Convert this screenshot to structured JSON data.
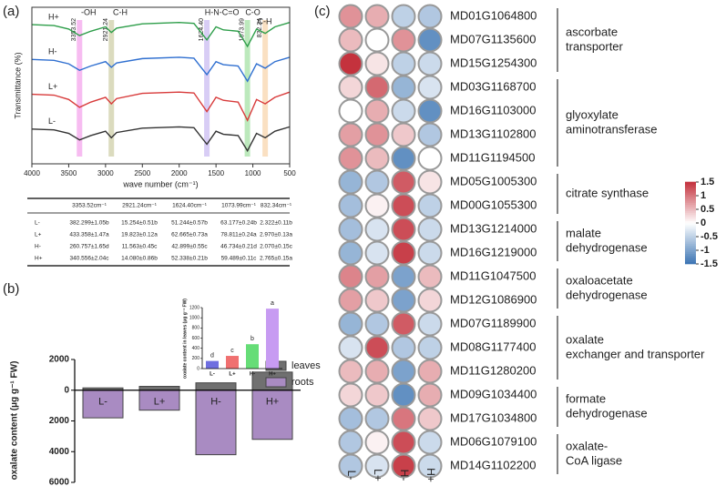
{
  "panel_labels": [
    "(a)",
    "(b)",
    "(c)"
  ],
  "chart_data": [
    {
      "type": "line",
      "ylabel": "Transmittance (%)",
      "xlabel": "wave number (cm⁻¹)",
      "xlim": [
        4000,
        500
      ],
      "xticks": [
        4000,
        3500,
        3000,
        2500,
        2000,
        1500,
        1000,
        500
      ],
      "ylim": [
        0.4,
        4.0
      ],
      "x": [
        4000,
        3700,
        3500,
        3353,
        3200,
        3000,
        2921,
        2850,
        2500,
        2000,
        1800,
        1624,
        1500,
        1400,
        1200,
        1073,
        950,
        832,
        700,
        500
      ],
      "series": [
        {
          "name": "H+",
          "color": "#2e9e4a",
          "values": [
            3.6,
            3.58,
            3.5,
            3.35,
            3.45,
            3.55,
            3.42,
            3.52,
            3.62,
            3.65,
            3.63,
            3.25,
            3.55,
            3.48,
            3.45,
            3.1,
            3.5,
            3.4,
            3.55,
            3.65
          ]
        },
        {
          "name": "H-",
          "color": "#2f6fd0",
          "values": [
            2.8,
            2.78,
            2.7,
            2.55,
            2.65,
            2.75,
            2.62,
            2.72,
            2.82,
            2.85,
            2.83,
            2.45,
            2.75,
            2.68,
            2.65,
            2.3,
            2.7,
            2.6,
            2.75,
            2.85
          ]
        },
        {
          "name": "L+",
          "color": "#d83a3a",
          "values": [
            2.0,
            1.98,
            1.88,
            1.7,
            1.82,
            1.93,
            1.78,
            1.9,
            2.02,
            2.05,
            2.03,
            1.6,
            1.93,
            1.86,
            1.82,
            1.4,
            1.88,
            1.78,
            1.93,
            2.05
          ]
        },
        {
          "name": "L-",
          "color": "#333333",
          "values": [
            1.2,
            1.18,
            1.1,
            0.95,
            1.05,
            1.15,
            1.0,
            1.12,
            1.22,
            1.25,
            1.23,
            0.85,
            1.15,
            1.08,
            1.05,
            0.7,
            1.1,
            1.0,
            1.15,
            1.25
          ]
        }
      ],
      "bands": [
        {
          "value": 3353.52,
          "label": "3353.52",
          "color": "#f4a6ec"
        },
        {
          "value": 2921.24,
          "label": "2921.24",
          "color": "#cfcfa8"
        },
        {
          "value": 1624.4,
          "label": "1624.40",
          "color": "#cbbcf2"
        },
        {
          "value": 1073.99,
          "label": "1073.99",
          "color": "#a6e2a6"
        },
        {
          "value": 832.34,
          "label": "832.34",
          "color": "#f8d6ae"
        }
      ],
      "annotations": [
        {
          "text": "-OH",
          "x": 3230
        },
        {
          "text": "C-H",
          "x": 2800
        },
        {
          "text": "H-N-C=O",
          "x": 1420
        },
        {
          "text": "C-O",
          "x": 1000
        },
        {
          "text": "C-H",
          "x": 840
        }
      ]
    },
    {
      "type": "bar",
      "ylabel": "oxalate content (μg g⁻¹ FW)",
      "categories": [
        "L-",
        "L+",
        "H-",
        "H+"
      ],
      "ylim": [
        -6000,
        2000
      ],
      "yticks": [
        2000,
        0,
        {
          "value": -2000,
          "label": "2000"
        },
        {
          "value": -4000,
          "label": "4000"
        },
        {
          "value": -6000,
          "label": "6000"
        }
      ],
      "series": [
        {
          "name": "leaves",
          "color": "#707070",
          "values": [
            150,
            250,
            480,
            1180
          ]
        },
        {
          "name": "roots",
          "color": "#a98bc2",
          "values": [
            -1800,
            -1300,
            -4200,
            -3200
          ]
        }
      ]
    },
    {
      "type": "bar",
      "ylabel": "oxalate content in leaves (μg g⁻¹ FW)",
      "categories": [
        "L-",
        "L+",
        "H-",
        "H+"
      ],
      "values": [
        150,
        250,
        480,
        1180
      ],
      "colors": [
        "#6f6fe0",
        "#f07070",
        "#66dd77",
        "#c79bf2"
      ],
      "letters": [
        "d",
        "c",
        "b",
        "a"
      ],
      "ylim": [
        0,
        1200
      ],
      "yticks": [
        0,
        200,
        400,
        600,
        800,
        1000,
        1200
      ]
    },
    {
      "type": "heatmap",
      "columns": [
        "L-",
        "L+",
        "H-",
        "H+"
      ],
      "rows": [
        "MD01G1064800",
        "MD07G1135600",
        "MD15G1254300",
        "MD03G1168700",
        "MD16G1103000",
        "MD13G1102800",
        "MD11G1194500",
        "MD05G1005300",
        "MD00G1055300",
        "MD13G1214000",
        "MD16G1219000",
        "MD11G1047500",
        "MD12G1086900",
        "MD07G1189900",
        "MD08G1177400",
        "MD11G1280200",
        "MD09G1034400",
        "MD17G1034800",
        "MD06G1079100",
        "MD14G1102200"
      ],
      "values": [
        [
          0.8,
          0.6,
          -0.5,
          -0.6
        ],
        [
          0.5,
          0.0,
          0.8,
          -1.2
        ],
        [
          1.5,
          0.2,
          -0.5,
          -0.4
        ],
        [
          0.3,
          1.1,
          -0.8,
          -0.3
        ],
        [
          0.0,
          0.6,
          -0.4,
          -1.2
        ],
        [
          0.7,
          0.8,
          0.4,
          -0.6
        ],
        [
          0.8,
          0.5,
          -1.2,
          0.0
        ],
        [
          -0.8,
          -0.6,
          1.2,
          0.2
        ],
        [
          -0.7,
          0.1,
          1.3,
          -0.5
        ],
        [
          -0.7,
          -0.3,
          1.3,
          -0.4
        ],
        [
          -0.8,
          -0.3,
          1.4,
          -0.4
        ],
        [
          0.9,
          0.7,
          -1.0,
          0.5
        ],
        [
          0.7,
          0.4,
          -1.0,
          0.3
        ],
        [
          -0.8,
          -0.6,
          1.2,
          -0.4
        ],
        [
          -0.3,
          1.3,
          -0.6,
          -0.5
        ],
        [
          0.5,
          0.6,
          -1.0,
          0.6
        ],
        [
          0.3,
          0.4,
          -1.2,
          0.6
        ],
        [
          -0.7,
          -0.6,
          1.0,
          0.4
        ],
        [
          -0.6,
          0.1,
          1.3,
          -0.4
        ],
        [
          -0.6,
          -0.3,
          1.4,
          -0.4
        ]
      ],
      "clim": [
        -1.5,
        1.5
      ],
      "colors": [
        "#3b74b3",
        "#ffffff",
        "#c4323d"
      ],
      "cticks": [
        1.5,
        1,
        0.5,
        0,
        -0.5,
        -1,
        -1.5
      ],
      "groups": [
        {
          "lines": [
            "ascorbate",
            "transporter"
          ],
          "start": 0,
          "end": 2
        },
        {
          "lines": [
            "glyoxylate",
            "aminotransferase"
          ],
          "start": 3,
          "end": 6
        },
        {
          "lines": [
            "citrate synthase"
          ],
          "start": 7,
          "end": 8
        },
        {
          "lines": [
            "malate",
            "dehydrogenase"
          ],
          "start": 9,
          "end": 10
        },
        {
          "lines": [
            "oxaloacetate",
            "dehydrogenase"
          ],
          "start": 11,
          "end": 12
        },
        {
          "lines": [
            "oxalate",
            "exchanger and transporter"
          ],
          "start": 13,
          "end": 15
        },
        {
          "lines": [
            "formate",
            "dehydrogenase"
          ],
          "start": 16,
          "end": 17
        },
        {
          "lines": [
            "oxalate-",
            "CoA ligase"
          ],
          "start": 18,
          "end": 19
        }
      ]
    }
  ],
  "table": {
    "header": [
      "",
      "3353.52cm⁻¹",
      "2921.24cm⁻¹",
      "1624.40cm⁻¹",
      "1073.99cm⁻¹",
      "832.34cm⁻¹"
    ],
    "rows": [
      [
        "L-",
        "382.299±1.05b",
        "15.254±0.51b",
        "51.244±0.57b",
        "63.177±0.24b",
        "2.322±0.11b"
      ],
      [
        "L+",
        "433.358±1.47a",
        "19.823±0.12a",
        "62.665±0.73a",
        "78.811±0.24a",
        "2.970±0.13a"
      ],
      [
        "H-",
        "260.757±1.65d",
        "11.563±0.45c",
        "42.899±0.55c",
        "46.734±0.21d",
        "2.070±0.15c"
      ],
      [
        "H+",
        "340.556±2.04c",
        "14.080±0.86b",
        "52.338±0.21b",
        "59.489±0.11c",
        "2.765±0.15a"
      ]
    ]
  }
}
